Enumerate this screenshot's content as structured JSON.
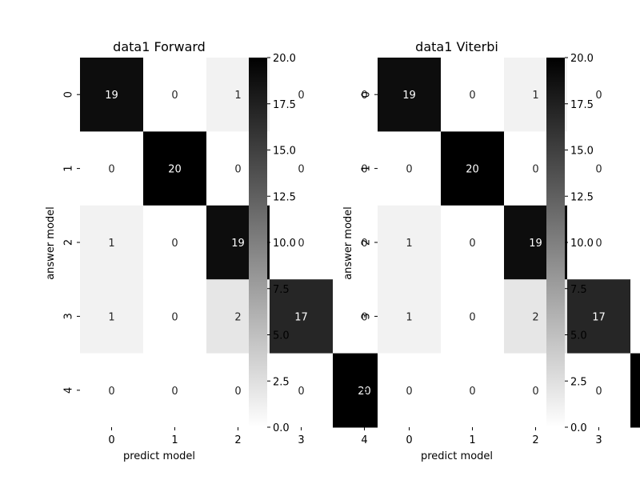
{
  "chart_data": [
    {
      "type": "heatmap",
      "title": "data1 Forward",
      "xlabel": "predict model",
      "ylabel": "answer model",
      "x_categories": [
        "0",
        "1",
        "2",
        "3",
        "4"
      ],
      "y_categories": [
        "0",
        "1",
        "2",
        "3",
        "4"
      ],
      "values": [
        [
          19,
          0,
          1,
          0,
          0
        ],
        [
          0,
          20,
          0,
          0,
          0
        ],
        [
          1,
          0,
          19,
          0,
          0
        ],
        [
          1,
          0,
          2,
          17,
          0
        ],
        [
          0,
          0,
          0,
          0,
          20
        ]
      ],
      "colorbar": {
        "range": [
          0,
          20
        ],
        "ticks": [
          "0.0",
          "2.5",
          "5.0",
          "7.5",
          "10.0",
          "12.5",
          "15.0",
          "17.5",
          "20.0"
        ],
        "colormap": "white-to-black"
      }
    },
    {
      "type": "heatmap",
      "title": "data1 Viterbi",
      "xlabel": "predict model",
      "ylabel": "answer model",
      "x_categories": [
        "0",
        "1",
        "2",
        "3",
        "4"
      ],
      "y_categories": [
        "0",
        "1",
        "2",
        "3",
        "4"
      ],
      "values": [
        [
          19,
          0,
          1,
          0,
          0
        ],
        [
          0,
          20,
          0,
          0,
          0
        ],
        [
          1,
          0,
          19,
          0,
          0
        ],
        [
          1,
          0,
          2,
          17,
          0
        ],
        [
          0,
          0,
          0,
          0,
          20
        ]
      ],
      "colorbar": {
        "range": [
          0,
          20
        ],
        "ticks": [
          "0.0",
          "2.5",
          "5.0",
          "7.5",
          "10.0",
          "12.5",
          "15.0",
          "17.5",
          "20.0"
        ],
        "colormap": "white-to-black"
      }
    }
  ]
}
